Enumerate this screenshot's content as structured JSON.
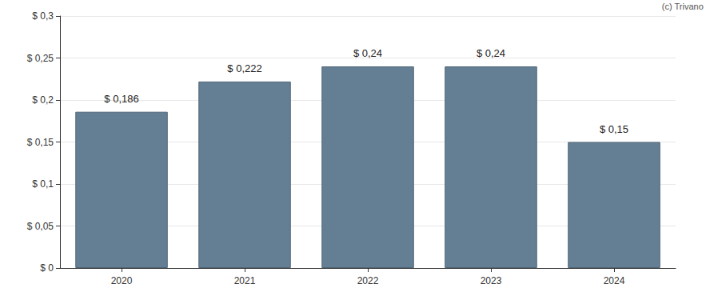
{
  "chart_data": {
    "type": "bar",
    "categories": [
      "2020",
      "2021",
      "2022",
      "2023",
      "2024"
    ],
    "values": [
      0.186,
      0.222,
      0.24,
      0.24,
      0.15
    ],
    "value_labels": [
      "$ 0,186",
      "$ 0,222",
      "$ 0,24",
      "$ 0,24",
      "$ 0,15"
    ],
    "data_labels": true,
    "color": "#647f94",
    "ylim": [
      0,
      0.3
    ],
    "yticks": [
      {
        "value": 0,
        "label": "$ 0"
      },
      {
        "value": 0.05,
        "label": "$ 0,05"
      },
      {
        "value": 0.1,
        "label": "$ 0,1"
      },
      {
        "value": 0.15,
        "label": "$ 0,15"
      },
      {
        "value": 0.2,
        "label": "$ 0,2"
      },
      {
        "value": 0.25,
        "label": "$ 0,25"
      },
      {
        "value": 0.3,
        "label": "$ 0,3"
      }
    ],
    "grid": true,
    "annotations": [
      "(c) Trivano"
    ]
  }
}
